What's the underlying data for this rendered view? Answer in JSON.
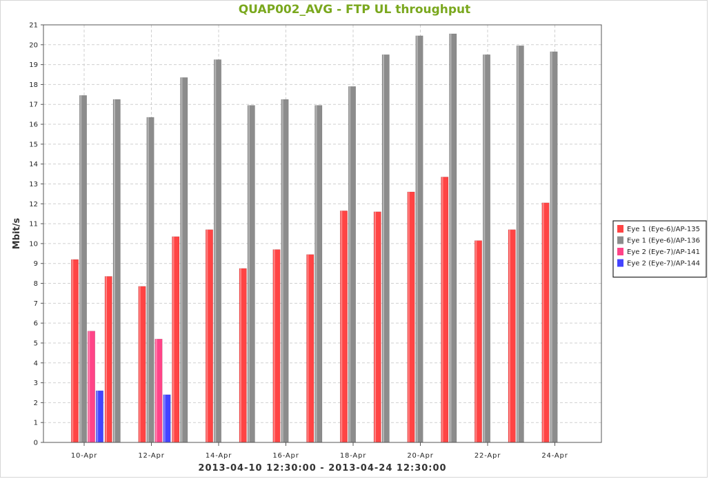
{
  "chart_data": {
    "type": "bar",
    "title": "QUAP002_AVG - FTP UL throughput",
    "xlabel": "2013-04-10 12:30:00 - 2013-04-24 12:30:00",
    "ylabel": "Mbit/s",
    "ylim": [
      0,
      21
    ],
    "yticks": [
      0,
      1,
      2,
      3,
      4,
      5,
      6,
      7,
      8,
      9,
      10,
      11,
      12,
      13,
      14,
      15,
      16,
      17,
      18,
      19,
      20,
      21
    ],
    "x_tick_labels": [
      "10-Apr",
      "12-Apr",
      "14-Apr",
      "16-Apr",
      "18-Apr",
      "20-Apr",
      "22-Apr",
      "24-Apr"
    ],
    "categories": [
      "2013-04-10",
      "2013-04-11",
      "2013-04-12",
      "2013-04-13",
      "2013-04-14",
      "2013-04-15",
      "2013-04-16",
      "2013-04-17",
      "2013-04-18",
      "2013-04-19",
      "2013-04-20",
      "2013-04-21",
      "2013-04-22",
      "2013-04-23",
      "2013-04-24"
    ],
    "grid": true,
    "legend_position": "right",
    "series": [
      {
        "name": "Eye 1 (Eye-6)/AP-135",
        "color": "#ff4444",
        "values": [
          9.2,
          8.35,
          7.85,
          10.35,
          10.7,
          8.75,
          9.7,
          9.45,
          11.65,
          11.6,
          12.6,
          13.35,
          10.15,
          10.7,
          12.05
        ]
      },
      {
        "name": "Eye 1 (Eye-6)/AP-136",
        "color": "#8c8c8c",
        "values": [
          17.45,
          17.25,
          16.35,
          18.35,
          19.25,
          16.95,
          17.25,
          16.95,
          17.9,
          19.5,
          20.45,
          20.55,
          19.5,
          19.95,
          19.65
        ]
      },
      {
        "name": "Eye 2 (Eye-7)/AP-141",
        "color": "#ff4488",
        "values": [
          5.6,
          null,
          5.2,
          null,
          null,
          null,
          null,
          null,
          null,
          null,
          null,
          null,
          null,
          null,
          null
        ]
      },
      {
        "name": "Eye 2 (Eye-7)/AP-144",
        "color": "#4444ff",
        "values": [
          2.6,
          null,
          2.4,
          null,
          null,
          null,
          null,
          null,
          null,
          null,
          null,
          null,
          null,
          null,
          null
        ]
      }
    ]
  }
}
